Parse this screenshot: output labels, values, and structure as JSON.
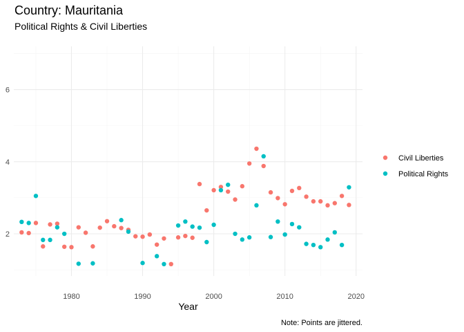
{
  "chart_data": {
    "type": "scatter",
    "title": "Country: Mauritania",
    "subtitle": "Political Rights & Civil Liberties",
    "xlabel": "Year",
    "ylabel": "",
    "caption": "Note: Points are jittered.",
    "xlim": [
      1971.9,
      2020.9
    ],
    "ylim": [
      0.83,
      7.2
    ],
    "xticks": [
      1980,
      1990,
      2000,
      2010,
      2020
    ],
    "yticks": [
      2,
      4,
      6
    ],
    "grid": true,
    "legend_position": "right",
    "series": [
      {
        "name": "Civil Liberties",
        "color": "#F8766D",
        "points": [
          [
            1973,
            2.04
          ],
          [
            1974,
            2.02
          ],
          [
            1975,
            2.3
          ],
          [
            1976,
            1.65
          ],
          [
            1977,
            2.26
          ],
          [
            1978,
            2.28
          ],
          [
            1979,
            1.64
          ],
          [
            1980,
            1.63
          ],
          [
            1981,
            2.18
          ],
          [
            1982,
            2.03
          ],
          [
            1983,
            1.65
          ],
          [
            1984,
            2.17
          ],
          [
            1985,
            2.35
          ],
          [
            1986,
            2.21
          ],
          [
            1987,
            2.16
          ],
          [
            1988,
            2.11
          ],
          [
            1989,
            1.93
          ],
          [
            1990,
            1.92
          ],
          [
            1991,
            1.98
          ],
          [
            1992,
            1.7
          ],
          [
            1993,
            1.87
          ],
          [
            1994,
            1.16
          ],
          [
            1995,
            1.9
          ],
          [
            1996,
            1.94
          ],
          [
            1997,
            1.89
          ],
          [
            1998,
            3.38
          ],
          [
            1999,
            2.65
          ],
          [
            2000,
            3.21
          ],
          [
            2001,
            3.3
          ],
          [
            2002,
            3.17
          ],
          [
            2003,
            2.95
          ],
          [
            2004,
            3.32
          ],
          [
            2005,
            3.95
          ],
          [
            2006,
            4.36
          ],
          [
            2007,
            3.88
          ],
          [
            2008,
            3.15
          ],
          [
            2009,
            2.99
          ],
          [
            2010,
            2.82
          ],
          [
            2011,
            3.19
          ],
          [
            2012,
            3.27
          ],
          [
            2013,
            3.03
          ],
          [
            2014,
            2.9
          ],
          [
            2015,
            2.9
          ],
          [
            2016,
            2.79
          ],
          [
            2017,
            2.85
          ],
          [
            2018,
            3.05
          ],
          [
            2019,
            2.8
          ]
        ]
      },
      {
        "name": "Political Rights",
        "color": "#00BFC4",
        "points": [
          [
            1973,
            2.33
          ],
          [
            1974,
            2.3
          ],
          [
            1975,
            3.05
          ],
          [
            1976,
            1.83
          ],
          [
            1977,
            1.83
          ],
          [
            1978,
            2.18
          ],
          [
            1979,
            2.0
          ],
          [
            1981,
            1.17
          ],
          [
            1983,
            1.18
          ],
          [
            1987,
            2.38
          ],
          [
            1988,
            2.06
          ],
          [
            1990,
            1.19
          ],
          [
            1992,
            1.38
          ],
          [
            1993,
            1.16
          ],
          [
            1995,
            2.23
          ],
          [
            1996,
            2.34
          ],
          [
            1997,
            2.2
          ],
          [
            1998,
            2.17
          ],
          [
            1999,
            1.77
          ],
          [
            2000,
            2.25
          ],
          [
            2001,
            3.21
          ],
          [
            2002,
            3.36
          ],
          [
            2003,
            2.0
          ],
          [
            2004,
            1.84
          ],
          [
            2005,
            1.9
          ],
          [
            2006,
            2.79
          ],
          [
            2007,
            4.15
          ],
          [
            2008,
            1.91
          ],
          [
            2009,
            2.34
          ],
          [
            2010,
            1.98
          ],
          [
            2011,
            2.27
          ],
          [
            2012,
            2.18
          ],
          [
            2013,
            1.72
          ],
          [
            2014,
            1.69
          ],
          [
            2015,
            1.63
          ],
          [
            2016,
            1.84
          ],
          [
            2017,
            2.04
          ],
          [
            2018,
            1.69
          ],
          [
            2019,
            3.29
          ]
        ]
      }
    ]
  }
}
